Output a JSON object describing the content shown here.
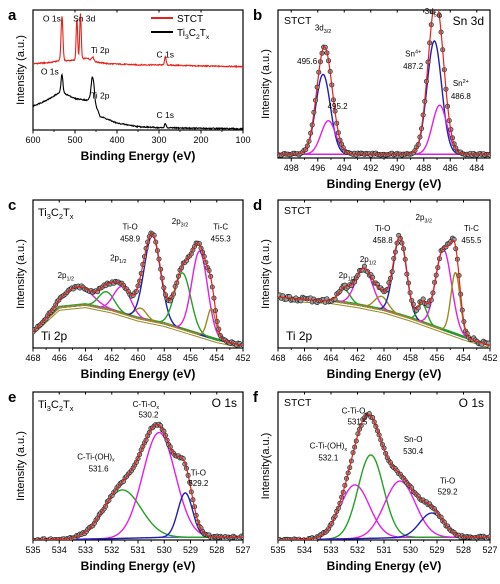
{
  "figure": {
    "panel_letters": [
      "a",
      "b",
      "c",
      "d",
      "e",
      "f"
    ]
  },
  "colors": {
    "black": "#000000",
    "red": "#e8201a",
    "blue": "#1f1fb4",
    "magenta": "#e51ee5",
    "green": "#23a023",
    "olive": "#9a8a1e",
    "purple": "#8a2bd8",
    "envelope": "#e8201a",
    "baseline": "#1f1fb4"
  },
  "chart_data": [
    {
      "id": "a",
      "type": "line",
      "title": "",
      "xlabel": "Binding Energy (eV)",
      "ylabel": "Intensity (a.u.)",
      "xlim": [
        600,
        100
      ],
      "xticks": [
        600,
        500,
        400,
        300,
        200,
        100
      ],
      "legend": {
        "placement": "top-right",
        "entries": [
          {
            "label": "STCT",
            "color": "#e8201a"
          },
          {
            "label_main": "Ti",
            "label_sub1": "3",
            "label_mid": "C",
            "label_sub2": "2",
            "label_end": "T",
            "label_sub3": "x",
            "color": "#000000"
          }
        ]
      },
      "annotations": [
        {
          "text": "O 1s",
          "x": 555,
          "y": 1.9
        },
        {
          "text": "Sn 3d",
          "x": 478,
          "y": 1.9
        },
        {
          "text": "Ti 2p",
          "x": 440,
          "y": 1.35
        },
        {
          "text": "C 1s",
          "x": 285,
          "y": 1.27
        },
        {
          "text": "O 1s",
          "x": 560,
          "y": 0.97
        },
        {
          "text": "Ti 2p",
          "x": 440,
          "y": 0.55
        },
        {
          "text": "C 1s",
          "x": 285,
          "y": 0.21
        }
      ],
      "series": [
        {
          "name": "STCT",
          "offset": 1.08,
          "base": [
            [
              600,
              0.08
            ],
            [
              560,
              0.1
            ],
            [
              540,
              0.13
            ],
            [
              500,
              0.14
            ],
            [
              470,
              0.18
            ],
            [
              460,
              0.12
            ],
            [
              420,
              0.08
            ],
            [
              350,
              0.06
            ],
            [
              300,
              0.06
            ],
            [
              200,
              0.04
            ],
            [
              100,
              0.03
            ]
          ],
          "peaks": [
            {
              "x": 531,
              "h": 0.78,
              "w": 2.2
            },
            {
              "x": 495.5,
              "h": 0.72,
              "w": 1.8
            },
            {
              "x": 487,
              "h": 0.8,
              "w": 1.8
            },
            {
              "x": 458,
              "h": 0.08,
              "w": 3
            },
            {
              "x": 285,
              "h": 0.14,
              "w": 2
            }
          ]
        },
        {
          "name": "Ti3C2Tx",
          "offset": 0.0,
          "base": [
            [
              600,
              0.42
            ],
            [
              580,
              0.48
            ],
            [
              560,
              0.55
            ],
            [
              545,
              0.62
            ],
            [
              535,
              0.66
            ],
            [
              525,
              0.64
            ],
            [
              500,
              0.55
            ],
            [
              470,
              0.52
            ],
            [
              462,
              0.6
            ],
            [
              455,
              0.5
            ],
            [
              440,
              0.24
            ],
            [
              400,
              0.12
            ],
            [
              350,
              0.06
            ],
            [
              300,
              0.04
            ],
            [
              200,
              0.03
            ],
            [
              100,
              0.02
            ]
          ],
          "peaks": [
            {
              "x": 531,
              "h": 0.32,
              "w": 2.2
            },
            {
              "x": 459,
              "h": 0.32,
              "w": 2.4
            },
            {
              "x": 455,
              "h": 0.22,
              "w": 2.2
            },
            {
              "x": 285,
              "h": 0.08,
              "w": 1.8
            }
          ]
        }
      ],
      "ylim": [
        0,
        2.1
      ]
    },
    {
      "id": "b",
      "type": "line",
      "title": "",
      "sample_label": "STCT",
      "region_label": "Sn 3d",
      "xlabel": "Binding Energy (eV)",
      "ylabel": "Intensity (a.u.)",
      "xlim": [
        499,
        483
      ],
      "xticks": [
        498,
        496,
        494,
        492,
        490,
        488,
        486,
        484
      ],
      "ylim": [
        0,
        1.15
      ],
      "background": 0.03,
      "components": [
        {
          "name": "3d5/2 Sn4+ 487.2",
          "center": 487.2,
          "height": 0.88,
          "width": 0.55,
          "color": "#1f1fb4"
        },
        {
          "name": "3d5/2 Sn2+ 486.8",
          "center": 486.8,
          "height": 0.38,
          "width": 0.55,
          "color": "#e51ee5"
        },
        {
          "name": "3d3/2 Sn4+ 495.6",
          "center": 495.6,
          "height": 0.62,
          "width": 0.55,
          "color": "#1f1fb4"
        },
        {
          "name": "3d3/2 Sn2+ 495.2",
          "center": 495.2,
          "height": 0.26,
          "width": 0.55,
          "color": "#e51ee5"
        }
      ],
      "labels": [
        {
          "main": "3d",
          "sub": "3/2",
          "x": 495.6,
          "y": 0.99
        },
        {
          "main": "495.6",
          "x": 496.8,
          "y": 0.73
        },
        {
          "main": "495.2",
          "x": 494.5,
          "y": 0.38
        },
        {
          "main": "3d",
          "sub": "5/2",
          "x": 487.3,
          "y": 1.12
        },
        {
          "main": "Sn",
          "sup": "4+",
          "x": 488.8,
          "y": 0.79
        },
        {
          "main": "487.2",
          "x": 488.8,
          "y": 0.69
        },
        {
          "main": "Sn",
          "sup": "2+",
          "x": 485.2,
          "y": 0.56
        },
        {
          "main": "486.8",
          "x": 485.2,
          "y": 0.46
        }
      ]
    },
    {
      "id": "c",
      "type": "line",
      "sample_label_main": "Ti",
      "sample_label_s1": "3",
      "sample_label_mid": "C",
      "sample_label_s2": "2",
      "sample_label_end": "T",
      "sample_label_s3": "x",
      "region_label": "Ti 2p",
      "xlabel": "Binding Energy (eV)",
      "ylabel": "Intensity (a.u.)",
      "xlim": [
        468,
        452
      ],
      "xticks": [
        468,
        466,
        464,
        462,
        460,
        458,
        456,
        454,
        452
      ],
      "ylim": [
        0,
        1.1
      ],
      "background_points": [
        [
          468,
          0.12
        ],
        [
          466,
          0.3
        ],
        [
          464,
          0.32
        ],
        [
          462,
          0.28
        ],
        [
          460,
          0.22
        ],
        [
          458,
          0.18
        ],
        [
          456,
          0.12
        ],
        [
          454,
          0.06
        ],
        [
          452,
          0.02
        ]
      ],
      "components": [
        {
          "center": 464.6,
          "height": 0.14,
          "width": 1.1,
          "color": "#e51ee5"
        },
        {
          "center": 462.4,
          "height": 0.13,
          "width": 0.6,
          "color": "#23a023"
        },
        {
          "center": 461.2,
          "height": 0.2,
          "width": 0.65,
          "color": "#e51ee5"
        },
        {
          "center": 459.8,
          "height": 0.08,
          "width": 0.45,
          "color": "#9a8a1e"
        },
        {
          "center": 458.9,
          "height": 0.64,
          "width": 0.62,
          "color": "#1f1fb4"
        },
        {
          "center": 456.6,
          "height": 0.42,
          "width": 0.62,
          "color": "#23a023"
        },
        {
          "center": 455.3,
          "height": 0.62,
          "width": 0.6,
          "color": "#e51ee5"
        },
        {
          "center": 454.4,
          "height": 0.22,
          "width": 0.32,
          "color": "#9a8a1e"
        }
      ],
      "labels": [
        {
          "main": "2p",
          "sub": "1/2",
          "x": 465.5,
          "y": 0.52
        },
        {
          "main": "2p",
          "sub": "1/2",
          "x": 461.5,
          "y": 0.65
        },
        {
          "main": "Ti-O",
          "x": 460.6,
          "y": 0.88
        },
        {
          "main": "458.9",
          "x": 460.6,
          "y": 0.79
        },
        {
          "main": "2p",
          "sub": "3/2",
          "x": 456.8,
          "y": 0.92
        },
        {
          "main": "Ti-C",
          "x": 453.7,
          "y": 0.88
        },
        {
          "main": "455.3",
          "x": 453.7,
          "y": 0.79
        }
      ]
    },
    {
      "id": "d",
      "type": "line",
      "sample_label": "STCT",
      "region_label": "Ti 2p",
      "xlabel": "Binding Energy (eV)",
      "ylabel": "Intensity (a.u.)",
      "xlim": [
        468,
        452
      ],
      "xticks": [
        468,
        466,
        464,
        462,
        460,
        458,
        456,
        454,
        452
      ],
      "ylim": [
        0,
        1.1
      ],
      "background_points": [
        [
          468,
          0.38
        ],
        [
          466,
          0.36
        ],
        [
          464,
          0.35
        ],
        [
          462,
          0.32
        ],
        [
          460,
          0.28
        ],
        [
          458,
          0.22
        ],
        [
          456,
          0.15
        ],
        [
          454,
          0.08
        ],
        [
          452,
          0.02
        ]
      ],
      "components": [
        {
          "center": 463.0,
          "height": 0.1,
          "width": 0.45,
          "color": "#23a023"
        },
        {
          "center": 461.5,
          "height": 0.28,
          "width": 0.65,
          "color": "#e51ee5"
        },
        {
          "center": 460.2,
          "height": 0.1,
          "width": 0.5,
          "color": "#9a8a1e"
        },
        {
          "center": 458.8,
          "height": 0.58,
          "width": 0.5,
          "color": "#1f1fb4"
        },
        {
          "center": 457.1,
          "height": 0.14,
          "width": 0.35,
          "color": "#23a023"
        },
        {
          "center": 455.5,
          "height": 0.6,
          "width": 0.6,
          "color": "#e51ee5"
        },
        {
          "center": 454.6,
          "height": 0.46,
          "width": 0.35,
          "color": "#9a8a1e"
        }
      ],
      "labels": [
        {
          "main": "2p",
          "sub": "1/2",
          "x": 462.8,
          "y": 0.52
        },
        {
          "main": "2p",
          "sub": "1/2",
          "x": 461.2,
          "y": 0.64
        },
        {
          "main": "Ti-O",
          "x": 460.1,
          "y": 0.87
        },
        {
          "main": "458.8",
          "x": 460.1,
          "y": 0.78
        },
        {
          "main": "2p",
          "sub": "3/2",
          "x": 457.0,
          "y": 0.95
        },
        {
          "main": "Ti-C",
          "x": 453.4,
          "y": 0.87
        },
        {
          "main": "455.5",
          "x": 453.4,
          "y": 0.78
        }
      ]
    },
    {
      "id": "e",
      "type": "line",
      "sample_label_main": "Ti",
      "sample_label_s1": "3",
      "sample_label_mid": "C",
      "sample_label_s2": "2",
      "sample_label_end": "T",
      "sample_label_s3": "x",
      "region_label": "O 1s",
      "xlabel": "Binding Energy (eV)",
      "ylabel": "Intensity (a.u.)",
      "xlim": [
        535,
        527
      ],
      "xticks": [
        535,
        534,
        533,
        532,
        531,
        530,
        529,
        528,
        527
      ],
      "ylim": [
        0,
        1.1
      ],
      "background_points": [
        [
          535,
          0.0
        ],
        [
          532,
          0.01
        ],
        [
          530,
          0.02
        ],
        [
          528,
          0.02
        ],
        [
          527,
          0.02
        ]
      ],
      "components": [
        {
          "center": 531.6,
          "height": 0.36,
          "width": 0.72,
          "color": "#23a023"
        },
        {
          "center": 530.2,
          "height": 0.78,
          "width": 0.62,
          "color": "#e51ee5"
        },
        {
          "center": 529.2,
          "height": 0.33,
          "width": 0.28,
          "color": "#1f1fb4"
        }
      ],
      "labels": [
        {
          "main": "C-Ti-O",
          "sub": "x",
          "x": 530.7,
          "y": 0.99
        },
        {
          "main": "530.2",
          "x": 530.6,
          "y": 0.91
        },
        {
          "main": "C-Ti-(OH)",
          "sub": "x",
          "x": 532.6,
          "y": 0.6
        },
        {
          "main": "531.6",
          "x": 532.5,
          "y": 0.51
        },
        {
          "main": "Ti-O",
          "x": 528.7,
          "y": 0.48
        },
        {
          "main": "529.2",
          "x": 528.7,
          "y": 0.4
        }
      ]
    },
    {
      "id": "f",
      "type": "line",
      "sample_label": "STCT",
      "region_label": "O 1s",
      "xlabel": "Binding Energy (eV)",
      "ylabel": "Intensity(a.u.)",
      "xlim": [
        535,
        527
      ],
      "xticks": [
        535,
        534,
        533,
        532,
        531,
        530,
        529,
        528,
        527
      ],
      "ylim": [
        0,
        1.1
      ],
      "background_points": [
        [
          535,
          0.0
        ],
        [
          532,
          0.01
        ],
        [
          530,
          0.02
        ],
        [
          528,
          0.02
        ],
        [
          527,
          0.02
        ]
      ],
      "components": [
        {
          "center": 532.1,
          "height": 0.4,
          "width": 0.55,
          "color": "#e51ee5"
        },
        {
          "center": 531.5,
          "height": 0.62,
          "width": 0.48,
          "color": "#23a023"
        },
        {
          "center": 530.4,
          "height": 0.42,
          "width": 0.58,
          "color": "#e51ee5"
        },
        {
          "center": 529.2,
          "height": 0.18,
          "width": 0.45,
          "color": "#1f1fb4"
        }
      ],
      "labels": [
        {
          "main": "C-Ti-O",
          "sub": "x",
          "x": 532.1,
          "y": 0.94
        },
        {
          "main": "531.5",
          "x": 532.0,
          "y": 0.86
        },
        {
          "main": "C-Ti-(OH)",
          "sub": "x",
          "x": 533.1,
          "y": 0.68
        },
        {
          "main": "532.1",
          "x": 533.1,
          "y": 0.59
        },
        {
          "main": "Sn-O",
          "x": 529.9,
          "y": 0.73
        },
        {
          "main": "530.4",
          "x": 529.9,
          "y": 0.64
        },
        {
          "main": "Ti-O",
          "x": 528.6,
          "y": 0.42
        },
        {
          "main": "529.2",
          "x": 528.6,
          "y": 0.34
        }
      ]
    }
  ]
}
